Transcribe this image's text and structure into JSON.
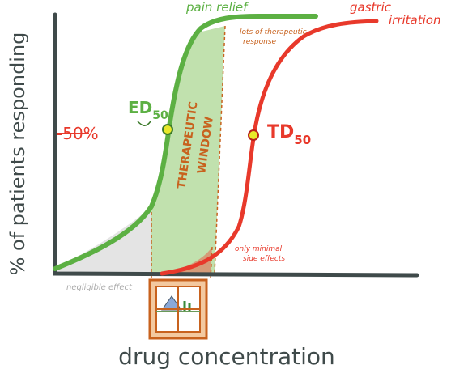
{
  "axes": {
    "y_label": "% of patients responding",
    "x_label": "drug concentration"
  },
  "curves": {
    "pain": "pain relief",
    "gastric": [
      "gastric",
      "irritation"
    ]
  },
  "labels": {
    "fifty": "-50%",
    "ed50": {
      "text": "ED",
      "subscript": "50"
    },
    "td50": {
      "text": "TD",
      "subscript": "50"
    },
    "window": [
      "THERAPEUTIC",
      "WINDOW"
    ],
    "therapeutic_response": [
      "lots of therapeutic",
      "response"
    ],
    "side_effects": [
      "only minimal",
      "side effects"
    ],
    "negligible": "negligible effect"
  }
}
